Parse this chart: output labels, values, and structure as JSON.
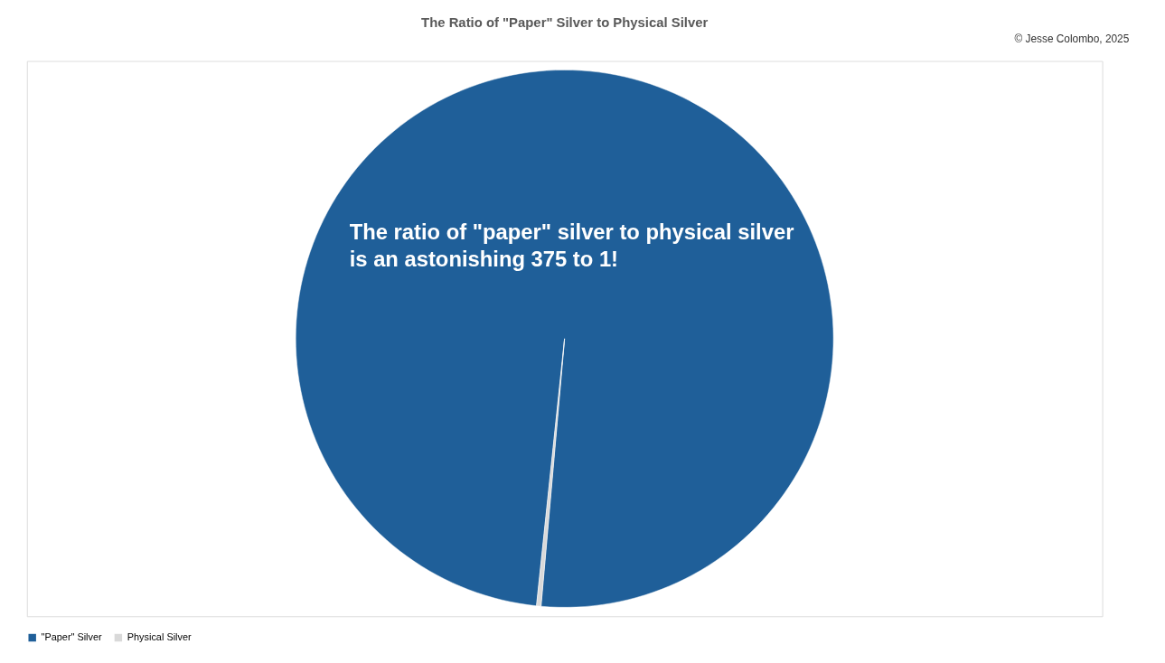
{
  "chart_data": {
    "type": "pie",
    "title": "The Ratio of \"Paper\" Silver to Physical Silver",
    "categories": [
      "\"Paper\" Silver",
      "Physical Silver"
    ],
    "values": [
      99.73,
      0.27
    ],
    "colors": [
      "#1f5f99",
      "#d9d9d9"
    ],
    "legend": "bottom",
    "annotations": [
      "The ratio of \"paper\" silver to physical silver is an astonishing 375 to 1!",
      "© Jesse Colombo, 2025"
    ]
  }
}
